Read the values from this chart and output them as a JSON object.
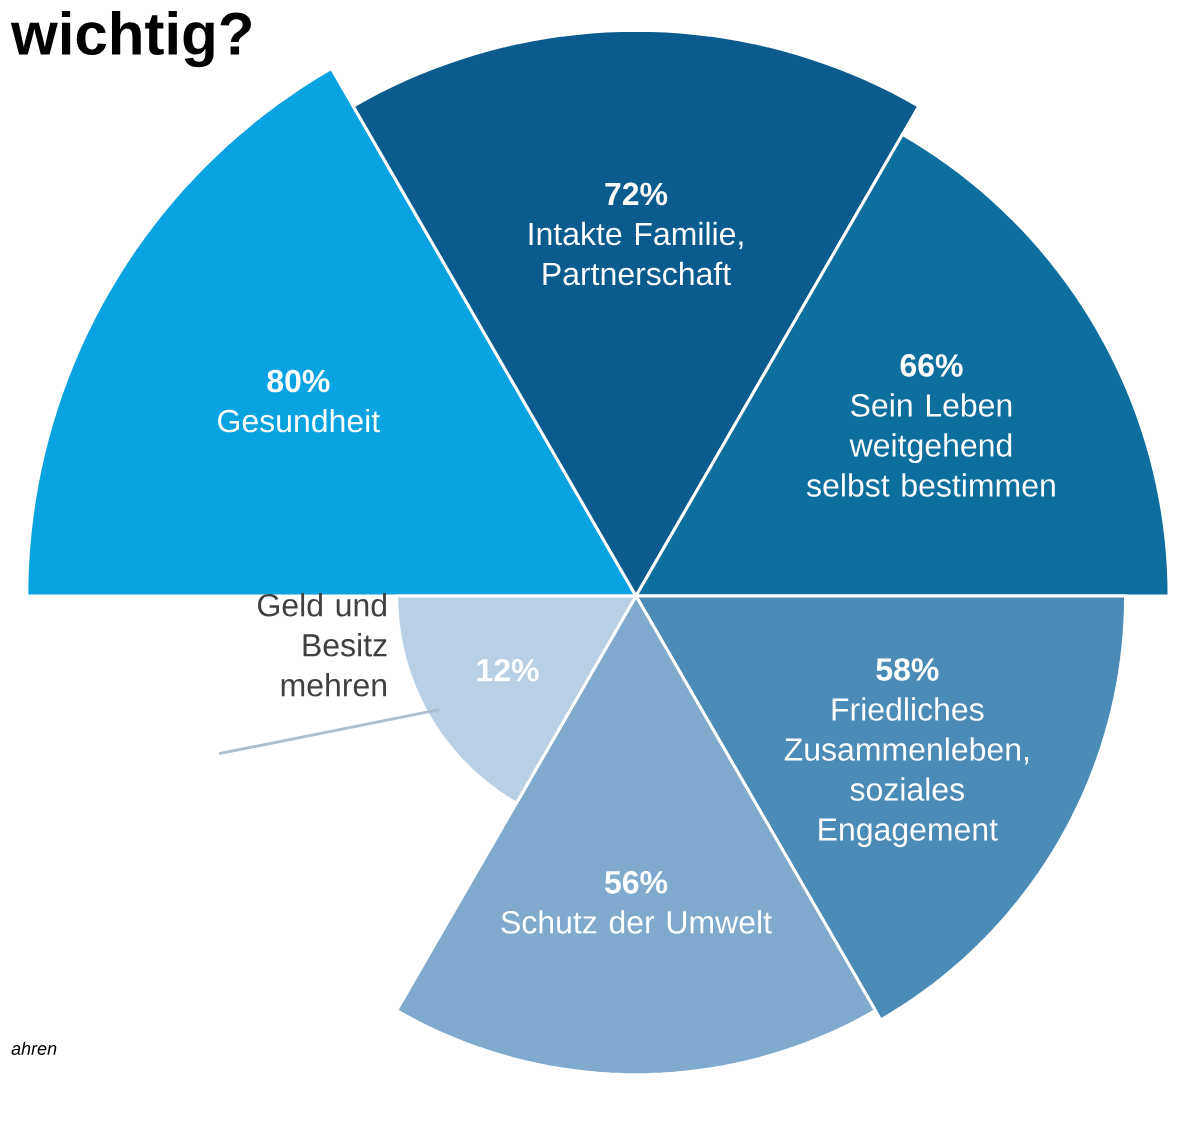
{
  "chart_data": {
    "type": "other",
    "title": "wichtig?",
    "categories": [
      "Gesundheit",
      "Intakte Familie, Partnerschaft",
      "Sein Leben weitgehend selbst bestimmen",
      "Friedliches Zusammenleben, soziales Engagement",
      "Schutz der Umwelt",
      "Geld und Besitz mehren"
    ],
    "values": [
      80,
      72,
      66,
      58,
      56,
      12
    ],
    "value_labels": [
      "80%",
      "72%",
      "66%",
      "58%",
      "56%",
      "12%"
    ],
    "colors": [
      "#0aa3e2",
      "#0b5b8e",
      "#0e6f9f",
      "#4a8bb8",
      "#80aacd",
      "#b9cfe3"
    ],
    "annotations": [
      "ahren"
    ]
  }
}
